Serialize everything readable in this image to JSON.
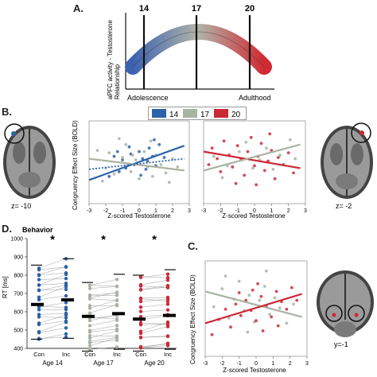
{
  "panel_labels": {
    "a": "A.",
    "b": "B.",
    "c": "C.",
    "d": "D."
  },
  "colors": {
    "age14": "#2b62a8",
    "age17": "#a9b3a3",
    "age20": "#cc2936",
    "line_dark": "#111111"
  },
  "legend": {
    "items": [
      {
        "label": "14",
        "color": "#2b62a8"
      },
      {
        "label": "17",
        "color": "#a9b3a3"
      },
      {
        "label": "20",
        "color": "#cc2936"
      }
    ]
  },
  "brain_labels": {
    "left": "z= -10",
    "right": "z= -2",
    "coronal": "y=-1"
  },
  "panel_a": {
    "ylabel_line1": "aPFC activity - Testosterone",
    "ylabel_line2": "Relationship",
    "x_start_label": "Adolescence",
    "x_end_label": "Adulthood",
    "age_marks": [
      {
        "label": "14"
      },
      {
        "label": "17"
      },
      {
        "label": "20"
      }
    ]
  },
  "chart_data": [
    {
      "id": "b-left",
      "type": "scatter",
      "xlabel": "Z-scored Testosterone",
      "ylabel": "Congruency Effect Size (BOLD)",
      "xlim": [
        -3,
        3
      ],
      "x_ticks": [
        "-3",
        "-2",
        "-1",
        "0",
        "1",
        "2",
        "3"
      ],
      "series": [
        {
          "name": "14",
          "color": "#2b62a8",
          "line": [
            [
              -3,
              -1.5
            ],
            [
              2.7,
              1.4
            ]
          ],
          "points": [
            [
              -1.8,
              -1.2
            ],
            [
              -1.5,
              0.5
            ],
            [
              -1.2,
              -0.8
            ],
            [
              -1,
              0.2
            ],
            [
              -0.8,
              -0.5
            ],
            [
              -0.5,
              0.7
            ],
            [
              -0.3,
              -0.2
            ],
            [
              0,
              0.9
            ],
            [
              0.2,
              0.3
            ],
            [
              0.4,
              -0.6
            ],
            [
              0.6,
              1.2
            ],
            [
              0.8,
              0.5
            ],
            [
              1,
              -0.3
            ],
            [
              1.2,
              1.5
            ],
            [
              1.5,
              0.4
            ],
            [
              -0.6,
              1.3
            ],
            [
              0.1,
              -1.1
            ],
            [
              0.9,
              1.9
            ],
            [
              -1.3,
              0.9
            ],
            [
              0.5,
              0.1
            ]
          ]
        },
        {
          "name": "17",
          "color": "#a9b3a3",
          "line": [
            [
              -3,
              0.3
            ],
            [
              2.7,
              -0.7
            ]
          ],
          "points": [
            [
              -2.5,
              1
            ],
            [
              -2,
              -0.5
            ],
            [
              -1.8,
              0.8
            ],
            [
              -1.5,
              -1
            ],
            [
              -1,
              0.4
            ],
            [
              -0.8,
              1.5
            ],
            [
              -0.5,
              -0.8
            ],
            [
              -0.2,
              0.2
            ],
            [
              0,
              -1.4
            ],
            [
              0.3,
              0.9
            ],
            [
              0.5,
              -0.4
            ],
            [
              0.8,
              -1.2
            ],
            [
              1,
              0.6
            ],
            [
              1.3,
              -0.2
            ],
            [
              1.6,
              -0.9
            ],
            [
              2,
              0.3
            ],
            [
              -1.2,
              2
            ],
            [
              0.7,
              1.8
            ],
            [
              -2.2,
              -1.6
            ],
            [
              1.8,
              -1.7
            ],
            [
              -0.4,
              0.6
            ],
            [
              2.3,
              -0.4
            ]
          ]
        },
        {
          "name": "dotted",
          "color": "#2b62a8",
          "dotted": true,
          "line": [
            [
              -3,
              -0.6
            ],
            [
              2.7,
              0.3
            ]
          ],
          "points": []
        }
      ]
    },
    {
      "id": "b-right",
      "type": "scatter",
      "xlabel": "Z-scored Testosterone",
      "xlim": [
        -3,
        3
      ],
      "x_ticks": [
        "-3",
        "-2",
        "-1",
        "0",
        "1",
        "2",
        "3"
      ],
      "series": [
        {
          "name": "20",
          "color": "#cc2936",
          "line": [
            [
              -3,
              0.9
            ],
            [
              2.7,
              -0.5
            ]
          ],
          "points": [
            [
              -2.5,
              1.2
            ],
            [
              -2.2,
              0.3
            ],
            [
              -2,
              -0.8
            ],
            [
              -1.8,
              1.8
            ],
            [
              -1.5,
              0.6
            ],
            [
              -1.3,
              -0.4
            ],
            [
              -1,
              1.4
            ],
            [
              -0.8,
              0.2
            ],
            [
              -0.6,
              -1.1
            ],
            [
              -0.4,
              0.9
            ],
            [
              -0.2,
              2.1
            ],
            [
              0,
              -0.3
            ],
            [
              0.2,
              0.5
            ],
            [
              0.4,
              1.6
            ],
            [
              0.6,
              -0.7
            ],
            [
              0.8,
              0.1
            ],
            [
              1,
              1
            ],
            [
              1.2,
              -1.4
            ],
            [
              1.4,
              0.4
            ],
            [
              1.7,
              -0.2
            ],
            [
              2,
              0.8
            ],
            [
              2.3,
              -0.9
            ],
            [
              -1.1,
              -1.8
            ],
            [
              0.9,
              2.4
            ],
            [
              -2.7,
              -0.2
            ],
            [
              0.1,
              -1.9
            ]
          ]
        },
        {
          "name": "17",
          "color": "#a9b3a3",
          "line": [
            [
              -3,
              -0.7
            ],
            [
              2.7,
              1.5
            ]
          ],
          "points": [
            [
              -2.4,
              0.5
            ],
            [
              -1.6,
              -0.3
            ],
            [
              -0.9,
              0.9
            ],
            [
              -0.1,
              -0.5
            ],
            [
              0.7,
              1.2
            ],
            [
              1.5,
              0.6
            ],
            [
              2.1,
              1.9
            ],
            [
              -1.9,
              -1.3
            ],
            [
              0.3,
              0.2
            ],
            [
              1.1,
              -0.6
            ],
            [
              2.4,
              0.3
            ],
            [
              -0.5,
              1.7
            ]
          ]
        }
      ]
    },
    {
      "id": "c",
      "type": "scatter",
      "xlabel": "Z-scored Testosterone",
      "ylabel": "Congruency Effect Size (BOLD)",
      "xlim": [
        -3,
        3
      ],
      "x_ticks": [
        "-3",
        "-2",
        "-1",
        "0",
        "1",
        "2",
        "3"
      ],
      "series": [
        {
          "name": "17",
          "color": "#a9b3a3",
          "line": [
            [
              -3,
              1.6
            ],
            [
              2.7,
              -0.4
            ]
          ],
          "points": [
            [
              -2.5,
              0.4
            ],
            [
              -2,
              1.8
            ],
            [
              -1.6,
              -0.5
            ],
            [
              -1.3,
              1
            ],
            [
              -1,
              2.4
            ],
            [
              -0.7,
              0.1
            ],
            [
              -0.4,
              1.3
            ],
            [
              -0.1,
              -0.8
            ],
            [
              0.2,
              0.9
            ],
            [
              0.5,
              2
            ],
            [
              0.8,
              -0.2
            ],
            [
              1.1,
              1.1
            ],
            [
              1.4,
              0.3
            ],
            [
              1.8,
              -0.9
            ],
            [
              2.2,
              0.6
            ],
            [
              -1.8,
              2.8
            ],
            [
              0.6,
              3.2
            ],
            [
              -0.5,
              -1.6
            ]
          ]
        },
        {
          "name": "20",
          "color": "#cc2936",
          "line": [
            [
              -3,
              -0.9
            ],
            [
              2.7,
              1.4
            ]
          ],
          "points": [
            [
              -2.2,
              -0.6
            ],
            [
              -1.8,
              0.2
            ],
            [
              -1.5,
              -1.2
            ],
            [
              -1.2,
              0.6
            ],
            [
              -0.9,
              -0.3
            ],
            [
              -0.6,
              0.9
            ],
            [
              -0.3,
              0.1
            ],
            [
              0,
              -0.7
            ],
            [
              0.3,
              1.2
            ],
            [
              0.6,
              0.4
            ],
            [
              0.9,
              -0.4
            ],
            [
              1.2,
              1.6
            ],
            [
              1.5,
              0.8
            ],
            [
              1.8,
              0.2
            ],
            [
              2.1,
              1.9
            ],
            [
              -1,
              1.5
            ],
            [
              0.1,
              2.2
            ],
            [
              -2.6,
              -1.8
            ],
            [
              1.3,
              -1.1
            ],
            [
              0.4,
              -1.5
            ],
            [
              -0.2,
              1.7
            ],
            [
              2.4,
              0.9
            ]
          ]
        }
      ]
    },
    {
      "id": "d",
      "type": "line",
      "title": "Behavior",
      "ylabel": "RT [ms]",
      "ylim": [
        400,
        1000
      ],
      "y_ticks": [
        "400",
        "500",
        "600",
        "700",
        "800",
        "900",
        "1000"
      ],
      "groups": [
        {
          "age_label": "Age 14",
          "color": "#2b62a8",
          "con_label": "Con",
          "inc_label": "Inc",
          "significance": "*",
          "mean_con": 640,
          "mean_inc": 665,
          "min_con": 450,
          "max_con": 855,
          "min_inc": 455,
          "max_inc": 890
        },
        {
          "age_label": "Age 17",
          "color": "#a9b3a3",
          "con_label": "Con",
          "inc_label": "Inc",
          "significance": "*",
          "mean_con": 575,
          "mean_inc": 590,
          "min_con": 385,
          "max_con": 760,
          "min_inc": 395,
          "max_inc": 805
        },
        {
          "age_label": "Age 20",
          "color": "#cc2936",
          "con_label": "Con",
          "inc_label": "Inc",
          "significance": "*",
          "mean_con": 560,
          "mean_inc": 580,
          "min_con": 385,
          "max_con": 800,
          "min_inc": 395,
          "max_inc": 830
        }
      ]
    }
  ]
}
